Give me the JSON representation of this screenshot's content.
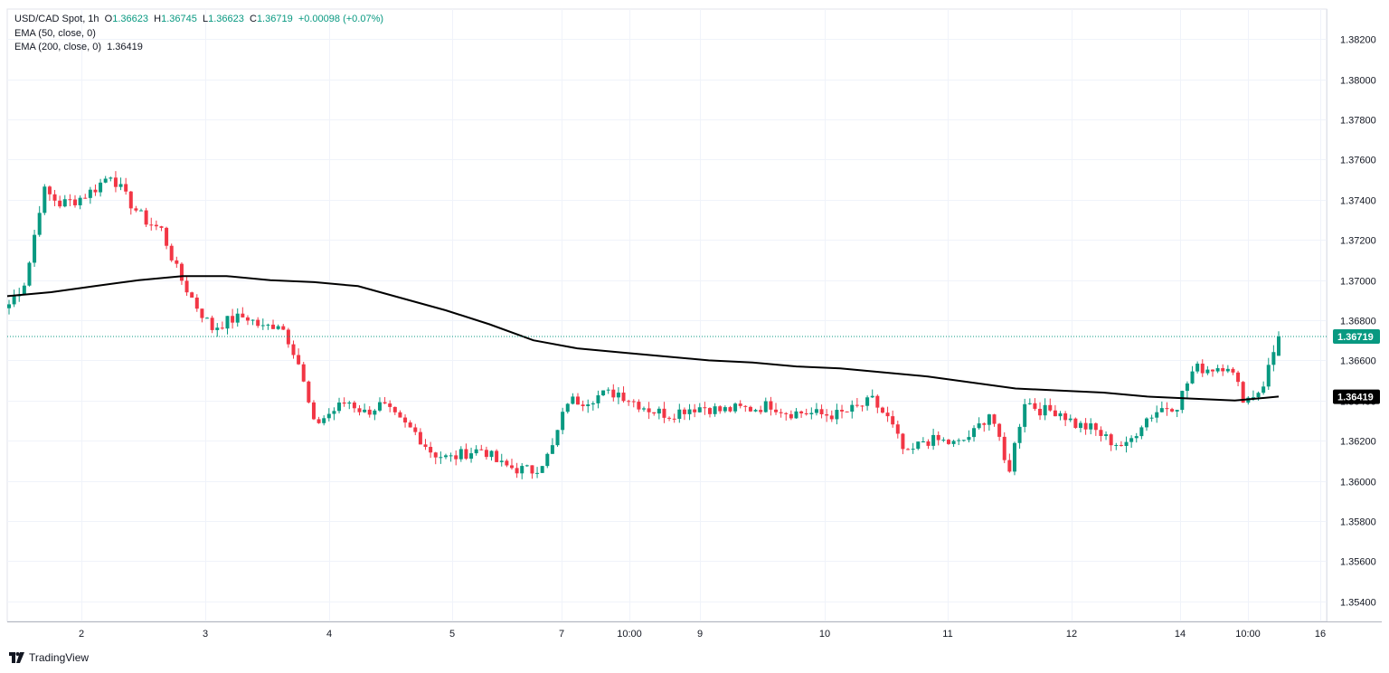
{
  "legend": {
    "symbol": "USD/CAD Spot, 1h",
    "open_label": "O",
    "open": "1.36623",
    "high_label": "H",
    "high": "1.36745",
    "low_label": "L",
    "low": "1.36623",
    "close_label": "C",
    "close": "1.36719",
    "change": "+0.00098 (+0.07%)",
    "ema50": "EMA (50, close, 0)",
    "ema200": "EMA (200, close, 0)",
    "ema200_value": "1.36419"
  },
  "brand": {
    "name": "TradingView",
    "icon": "tradingview-logo-icon"
  },
  "colors": {
    "up": "#089981",
    "down": "#f23645",
    "ema": "#000000",
    "grid": "#f0f3fa",
    "current_price": "#089981"
  },
  "chart_data": {
    "type": "candlestick",
    "title": "USD/CAD Spot, 1h",
    "ylim": [
      1.353,
      1.3835
    ],
    "y_ticks": [
      "1.38200",
      "1.38000",
      "1.37800",
      "1.37600",
      "1.37400",
      "1.37200",
      "1.37000",
      "1.36800",
      "1.36600",
      "1.36400",
      "1.36200",
      "1.36000",
      "1.35800",
      "1.35600",
      "1.35400"
    ],
    "x_ticks": [
      "2",
      "3",
      "4",
      "5",
      "7",
      "10:00",
      "9",
      "10",
      "11",
      "12",
      "14",
      "10:00",
      "16"
    ],
    "current_price_label": "1.36719",
    "ema_price_label": "1.36419",
    "grid": true,
    "series": [
      {
        "name": "EMA (200, close, 0)",
        "values": [
          1.3692,
          1.3694,
          1.3697,
          1.37,
          1.3702,
          1.3702,
          1.37,
          1.3699,
          1.3697,
          1.3691,
          1.3685,
          1.3678,
          1.367,
          1.3666,
          1.3664,
          1.3662,
          1.366,
          1.3659,
          1.3657,
          1.3656,
          1.3654,
          1.3652,
          1.3649,
          1.3646,
          1.3645,
          1.3644,
          1.3642,
          1.3641,
          1.364,
          1.3642
        ]
      }
    ],
    "candle_keypoints": [
      1.3688,
      1.37,
      1.3745,
      1.3738,
      1.374,
      1.3745,
      1.3753,
      1.374,
      1.373,
      1.3725,
      1.3703,
      1.3688,
      1.3676,
      1.368,
      1.3682,
      1.3676,
      1.3679,
      1.3662,
      1.3628,
      1.3634,
      1.364,
      1.3634,
      1.3638,
      1.363,
      1.3624,
      1.3614,
      1.3611,
      1.3614,
      1.3616,
      1.3608,
      1.3606,
      1.3605,
      1.3614,
      1.364,
      1.364,
      1.3643,
      1.3644,
      1.3639,
      1.3635,
      1.3633,
      1.3636,
      1.3637,
      1.3635,
      1.3636,
      1.3636,
      1.3638,
      1.3634,
      1.3634,
      1.3633,
      1.3633,
      1.3636,
      1.364,
      1.363,
      1.3612,
      1.362,
      1.362,
      1.3618,
      1.3624,
      1.3635,
      1.3603,
      1.364,
      1.3635,
      1.3635,
      1.3628,
      1.3626,
      1.362,
      1.3617,
      1.363,
      1.3636,
      1.3638,
      1.3656,
      1.3656,
      1.3658,
      1.364,
      1.3646,
      1.3672
    ]
  }
}
